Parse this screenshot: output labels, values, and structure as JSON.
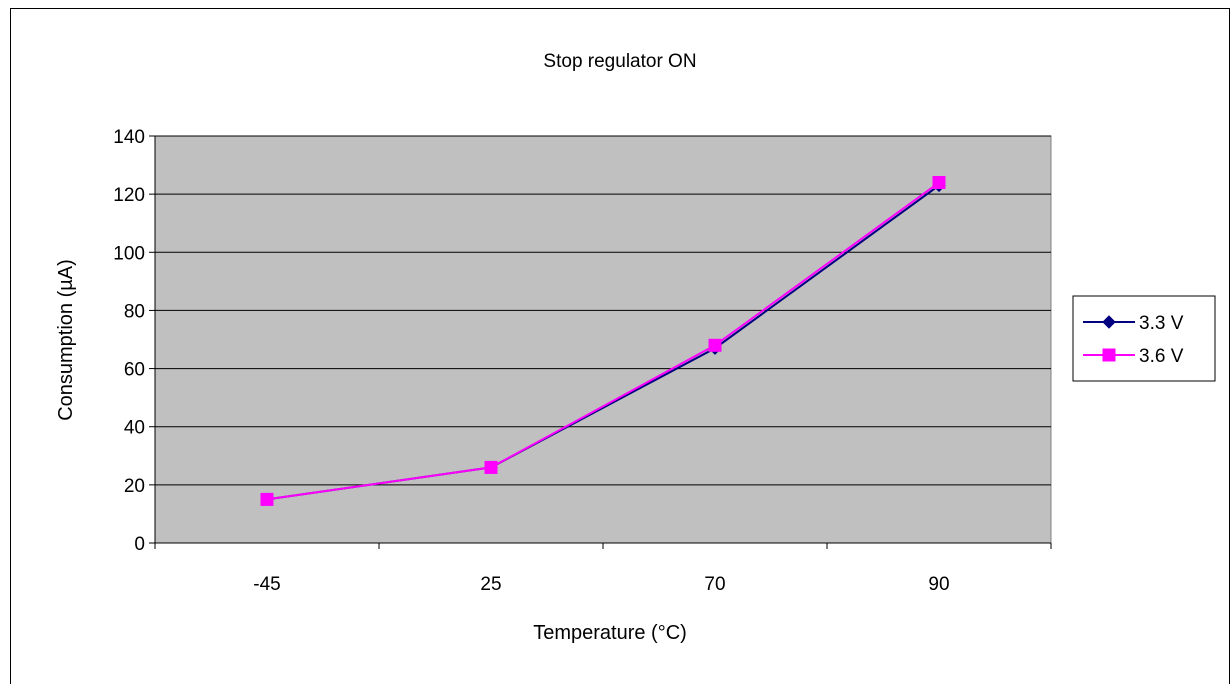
{
  "chart_data": {
    "type": "line",
    "title": "Stop regulator ON",
    "xlabel": "Temperature (°C)",
    "ylabel": "Consumption (µA)",
    "categories": [
      "-45",
      "25",
      "70",
      "90"
    ],
    "ylim": [
      0,
      140
    ],
    "yticks": [
      "0",
      "20",
      "40",
      "60",
      "80",
      "100",
      "120",
      "140"
    ],
    "grid": true,
    "legend_position": "right",
    "series": [
      {
        "name": "3.3 V",
        "values": [
          15,
          26,
          67,
          123
        ],
        "color": "#000080",
        "marker": "diamond"
      },
      {
        "name": "3.6 V",
        "values": [
          15,
          26,
          68,
          124
        ],
        "color": "#ff00ff",
        "marker": "square"
      }
    ],
    "plot_background": "#c0c0c0"
  }
}
